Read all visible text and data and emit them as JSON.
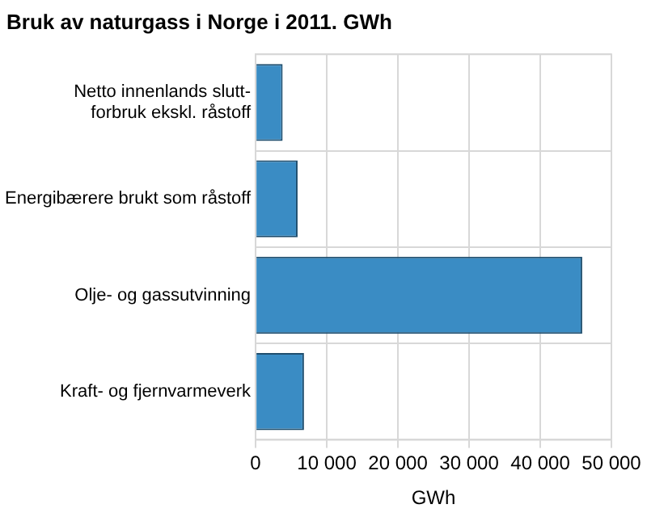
{
  "chart_data": {
    "type": "bar",
    "orientation": "horizontal",
    "title": "Bruk av naturgass i Norge i 2011. GWh",
    "categories": [
      "Netto innenlands slutt-\nforbruk ekskl. råstoff",
      "Energibærere brukt som råstoff",
      "Olje- og gassutvinning",
      "Kraft- og fjernvarmeverk"
    ],
    "values": [
      3800,
      5900,
      45900,
      6800
    ],
    "color": "#3a8cc4",
    "xlabel": "GWh",
    "xlim": [
      0,
      50000
    ],
    "xticks": [
      {
        "value": 0,
        "label": "0"
      },
      {
        "value": 10000,
        "label": "10 000"
      },
      {
        "value": 20000,
        "label": "20 000"
      },
      {
        "value": 30000,
        "label": "30 000"
      },
      {
        "value": 40000,
        "label": "40 000"
      },
      {
        "value": 50000,
        "label": "50 000"
      }
    ],
    "grid": true,
    "legend": false
  }
}
